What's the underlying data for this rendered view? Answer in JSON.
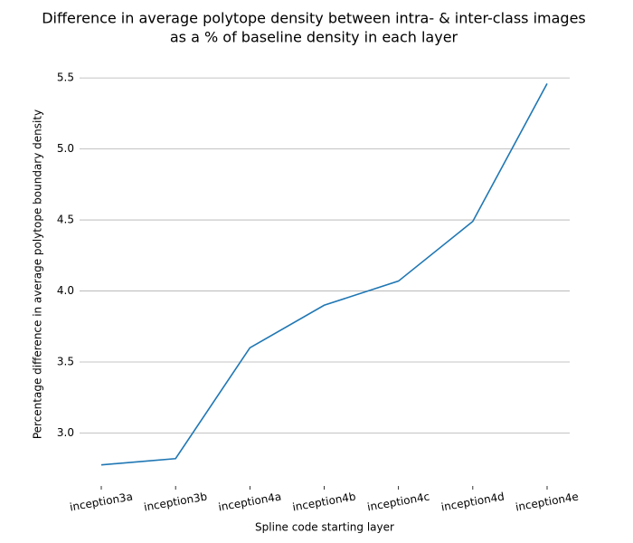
{
  "chart_data": {
    "type": "line",
    "title": [
      "Difference in average polytope density between intra- & inter-class images",
      "as a % of baseline density in each layer"
    ],
    "x_label": "Spline code starting layer",
    "y_label": "Percentage difference in average polytope boundary density",
    "categories": [
      "inception3a",
      "inception3b",
      "inception4a",
      "inception4b",
      "inception4c",
      "inception4d",
      "inception4e"
    ],
    "values": [
      2.776,
      2.82,
      3.6,
      3.9,
      4.07,
      4.49,
      5.46
    ],
    "color": "#1f77b4",
    "ylim": [
      2.64,
      5.59
    ],
    "yticks": [
      {
        "value": 3,
        "label": "3.0"
      },
      3.5,
      {
        "value": 4,
        "label": "4.0"
      },
      4.5,
      {
        "value": 5,
        "label": "5.0"
      },
      5.5
    ],
    "grid": true
  }
}
